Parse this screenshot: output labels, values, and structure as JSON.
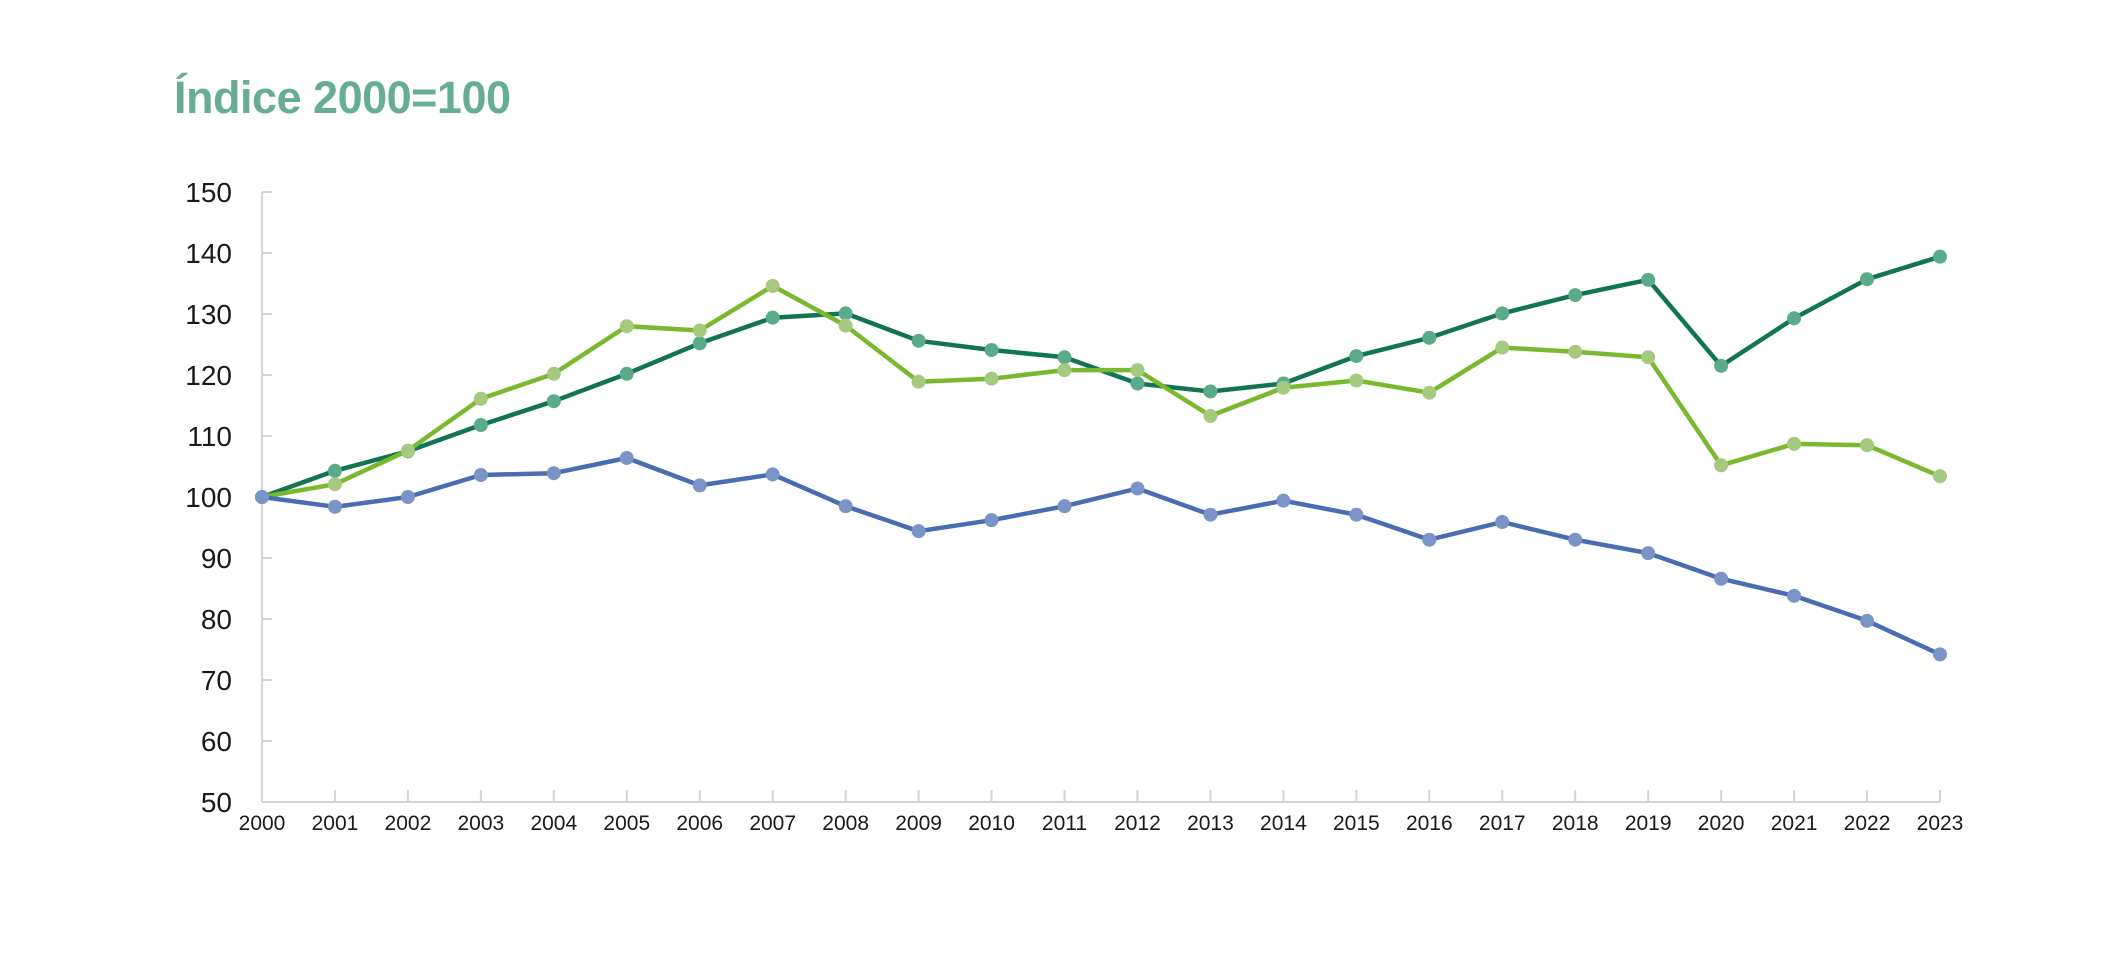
{
  "chart_data": {
    "type": "line",
    "title": "Índice 2000=100",
    "xlabel": "",
    "ylabel": "",
    "ylim": [
      50,
      150
    ],
    "yticks": [
      50,
      60,
      70,
      80,
      90,
      100,
      110,
      120,
      130,
      140,
      150
    ],
    "grid": false,
    "categories": [
      "2000",
      "2001",
      "2002",
      "2003",
      "2004",
      "2005",
      "2006",
      "2007",
      "2008",
      "2009",
      "2010",
      "2011",
      "2012",
      "2013",
      "2014",
      "2015",
      "2016",
      "2017",
      "2018",
      "2019",
      "2020",
      "2021",
      "2022",
      "2023"
    ],
    "series": [
      {
        "name": "dark-green",
        "color": "#137454",
        "marker_color": "#5aab8a",
        "values": [
          100,
          104.3,
          107.5,
          111.8,
          115.7,
          120.2,
          125.2,
          129.4,
          130.1,
          125.6,
          124.1,
          122.9,
          118.6,
          117.3,
          118.6,
          123.1,
          126.1,
          130.1,
          133.1,
          135.6,
          121.5,
          129.3,
          135.7,
          139.4
        ]
      },
      {
        "name": "light-green",
        "color": "#7ab82f",
        "marker_color": "#a5c97e",
        "values": [
          100,
          102.1,
          107.6,
          116.1,
          120.2,
          128.0,
          127.3,
          134.6,
          128.1,
          118.9,
          119.4,
          120.8,
          120.8,
          113.3,
          117.9,
          119.1,
          117.1,
          124.5,
          123.8,
          122.9,
          105.2,
          108.7,
          108.5,
          103.4
        ]
      },
      {
        "name": "blue",
        "color": "#4a6cb0",
        "marker_color": "#7b94c8",
        "values": [
          100,
          98.4,
          100,
          103.6,
          103.9,
          106.4,
          101.9,
          103.7,
          98.5,
          94.4,
          96.2,
          98.5,
          101.4,
          97.1,
          99.4,
          97.1,
          93.0,
          95.9,
          93.0,
          90.8,
          86.6,
          83.8,
          79.7,
          74.2
        ]
      }
    ]
  }
}
